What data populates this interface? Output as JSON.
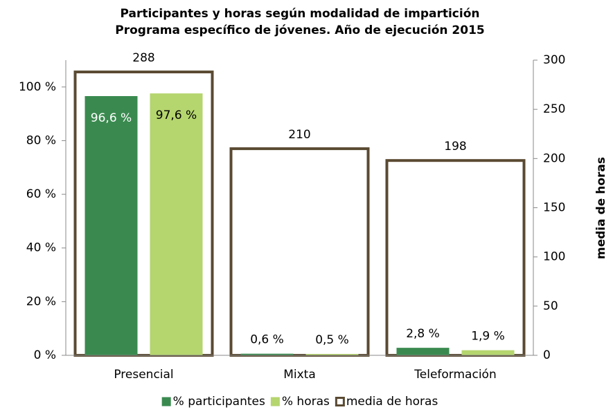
{
  "chart_data": {
    "type": "bar",
    "title": "Participantes y horas según modalidad de impartición",
    "subtitle": "Programa específico de jóvenes. Año de ejecución 2015",
    "categories": [
      "Presencial",
      "Mixta",
      "Teleformación"
    ],
    "series": [
      {
        "name": "% participantes",
        "color": "#3a8a4f",
        "values": [
          96.6,
          0.6,
          2.8
        ],
        "value_labels": [
          "96,6 %",
          "0,6 %",
          "2,8 %"
        ]
      },
      {
        "name": "% horas",
        "color": "#b5d56e",
        "values": [
          97.6,
          0.5,
          1.9
        ],
        "value_labels": [
          "97,6 %",
          "0,5 %",
          "1,9 %"
        ]
      },
      {
        "name": "media de horas",
        "color": "#5a4a32",
        "axis": "y2",
        "values": [
          288,
          210,
          198
        ]
      }
    ],
    "ylim": [
      0,
      110
    ],
    "yticks": [
      {
        "value": 0,
        "label": "0 %"
      },
      {
        "value": 20,
        "label": "20 %"
      },
      {
        "value": 40,
        "label": "40 %"
      },
      {
        "value": 60,
        "label": "60 %"
      },
      {
        "value": 80,
        "label": "80 %"
      },
      {
        "value": 100,
        "label": "100 %"
      }
    ],
    "y2lim": [
      0,
      300
    ],
    "y2ticks": [
      0,
      50,
      100,
      150,
      200,
      250,
      300
    ],
    "y2label": "media de horas",
    "legend": "bottom"
  }
}
